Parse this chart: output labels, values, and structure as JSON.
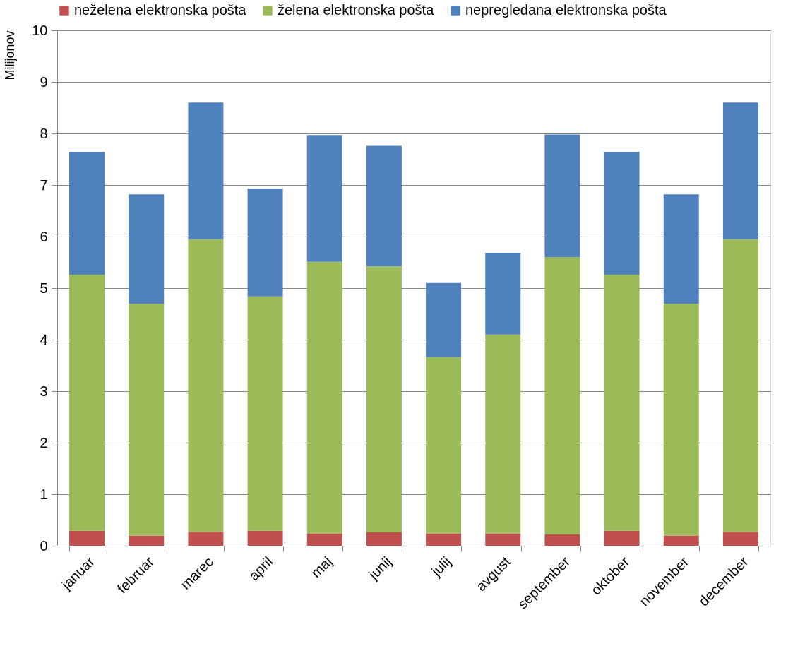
{
  "chart_data": {
    "type": "bar",
    "stacked": true,
    "ylabel": "Milijonov",
    "categories": [
      "januar",
      "februar",
      "marec",
      "april",
      "maj",
      "junij",
      "julij",
      "avgust",
      "september",
      "oktober",
      "november",
      "december"
    ],
    "series": [
      {
        "name": "neželena elektronska pošta",
        "color": "#c0504d",
        "values": [
          0.29,
          0.2,
          0.27,
          0.29,
          0.24,
          0.26,
          0.24,
          0.24,
          0.22,
          0.29,
          0.2,
          0.27
        ]
      },
      {
        "name": "želena elektronska pošta",
        "color": "#9bbb59",
        "values": [
          4.97,
          4.5,
          5.68,
          4.55,
          5.27,
          5.16,
          3.42,
          3.86,
          5.38,
          4.97,
          4.5,
          5.68
        ]
      },
      {
        "name": "nepregledana elektronska pošta",
        "color": "#4f81bd",
        "values": [
          2.38,
          2.12,
          2.65,
          2.09,
          2.46,
          2.34,
          1.44,
          1.58,
          2.38,
          2.38,
          2.12,
          2.65
        ]
      }
    ],
    "ylim": [
      0,
      10
    ],
    "yticks": [
      0,
      1,
      2,
      3,
      4,
      5,
      6,
      7,
      8,
      9,
      10
    ],
    "grid": "y",
    "legend": "top"
  }
}
